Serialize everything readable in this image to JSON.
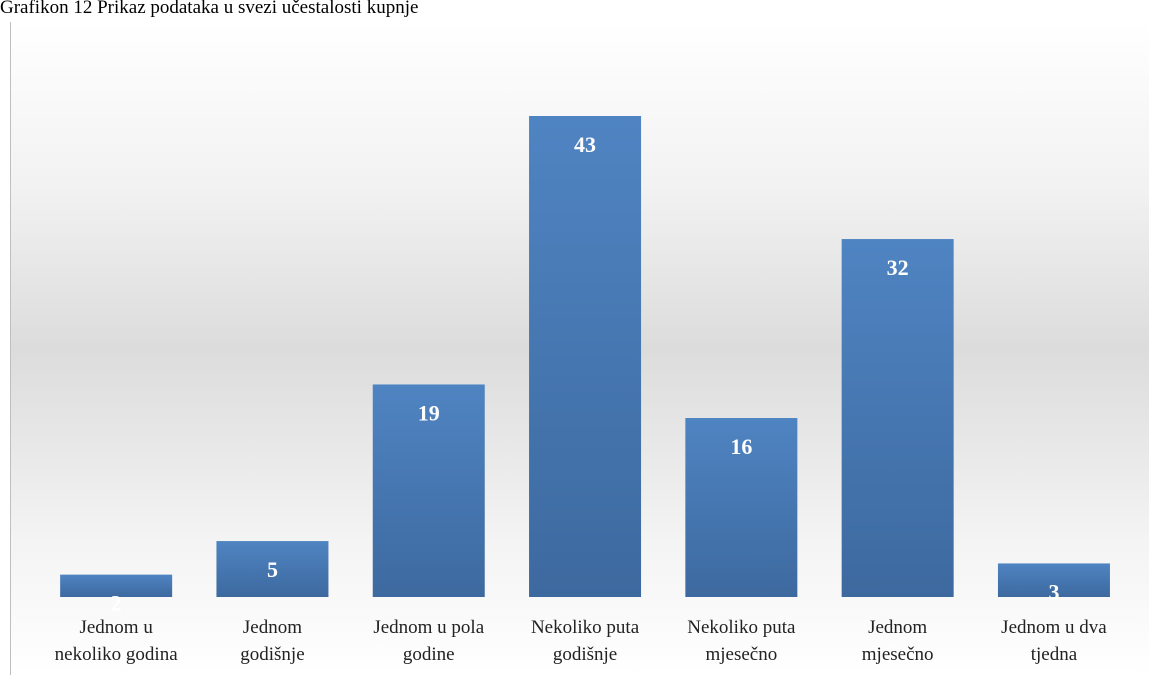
{
  "chart_data": {
    "type": "bar",
    "title": "Grafikon 12 Prikaz podataka u svezi učestalosti kupnje",
    "categories": [
      [
        "Jednom u",
        "nekoliko godina"
      ],
      [
        "Jednom",
        "godišnje"
      ],
      [
        "Jednom u pola",
        "godine"
      ],
      [
        "Nekoliko puta",
        "godišnje"
      ],
      [
        "Nekoliko puta",
        "mjesečno"
      ],
      [
        "Jednom",
        "mjesečno"
      ],
      [
        "Jednom u dva",
        "tjedna"
      ]
    ],
    "values": [
      2,
      5,
      19,
      43,
      16,
      32,
      3
    ],
    "color": "#4a7dba"
  }
}
